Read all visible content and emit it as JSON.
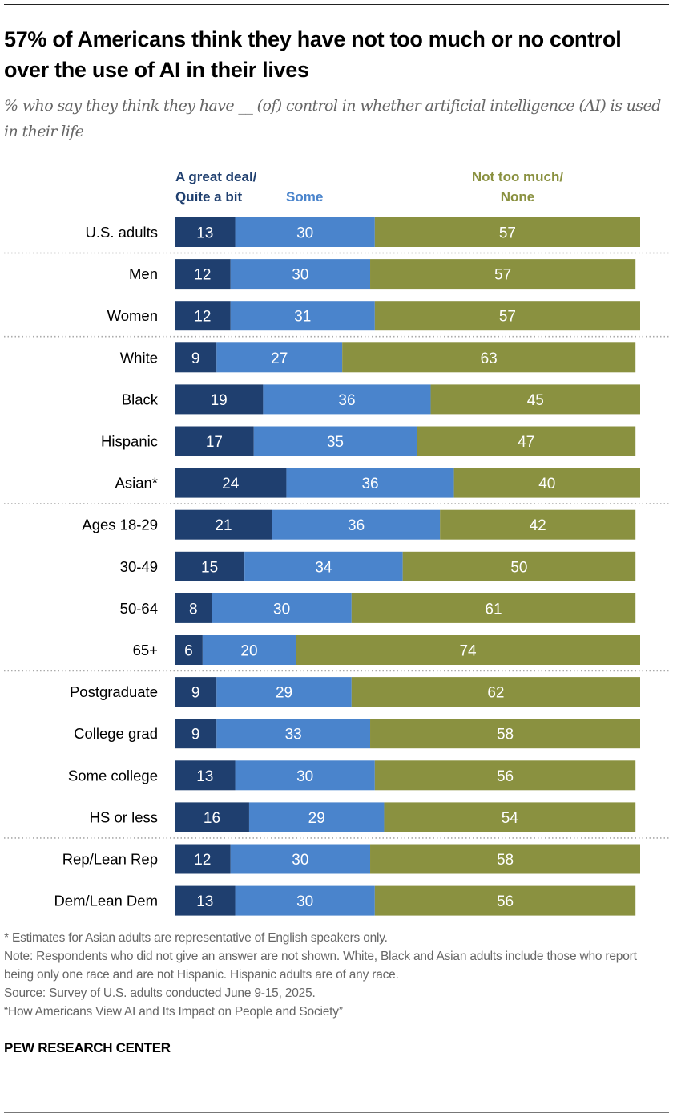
{
  "header": {
    "title": "57% of Americans think they have not too much or no control over the use of AI in their lives",
    "subtitle": "% who say they think they have __ (of) control in whether artificial intelligence (AI) is used in their life"
  },
  "colors": {
    "great_deal": "#1f3f6f",
    "some": "#4a84cc",
    "not_too_much": "#8a9140",
    "divider": "#aaaaaa"
  },
  "chart_data": {
    "type": "bar",
    "orientation": "horizontal",
    "stacked": true,
    "title": "57% of Americans think they have not too much or no control over the use of AI in their lives",
    "subtitle": "% who say they think they have __ (of) control in whether artificial intelligence (AI) is used in their life",
    "xlim": [
      0,
      100
    ],
    "grid": false,
    "legend_position": "top",
    "categories": [
      "U.S. adults",
      "Men",
      "Women",
      "White",
      "Black",
      "Hispanic",
      "Asian*",
      "Ages 18-29",
      "30-49",
      "50-64",
      "65+",
      "Postgraduate",
      "College grad",
      "Some college",
      "HS or less",
      "Rep/Lean Rep",
      "Dem/Lean Dem"
    ],
    "group_breaks_after": [
      "U.S. adults",
      "Women",
      "Asian*",
      "65+",
      "HS or less"
    ],
    "series": [
      {
        "name": "A great deal/ Quite a bit",
        "color": "#1f3f6f",
        "values": [
          13,
          12,
          12,
          9,
          19,
          17,
          24,
          21,
          15,
          8,
          6,
          9,
          9,
          13,
          16,
          12,
          13
        ]
      },
      {
        "name": "Some",
        "color": "#4a84cc",
        "values": [
          30,
          30,
          31,
          27,
          36,
          35,
          36,
          36,
          34,
          30,
          20,
          29,
          33,
          30,
          29,
          30,
          30
        ]
      },
      {
        "name": "Not too much/ None",
        "color": "#8a9140",
        "values": [
          57,
          57,
          57,
          63,
          45,
          47,
          40,
          42,
          50,
          61,
          74,
          62,
          58,
          56,
          54,
          58,
          56
        ]
      }
    ]
  },
  "legend": {
    "great_deal_line1": "A great deal/",
    "great_deal_line2": "Quite a bit",
    "some": "Some",
    "not_too_much_line1": "Not too much/",
    "not_too_much_line2": "None"
  },
  "footer": {
    "asterisk_note": "* Estimates for Asian adults are representative of English speakers only.",
    "note": "Note: Respondents who did not give an answer are not shown. White, Black and Asian adults include those who report being only one race and are not Hispanic. Hispanic adults are of any race.",
    "source": "Source: Survey of U.S. adults conducted June 9-15, 2025.",
    "report": "“How Americans View AI and Its Impact on People and Society”",
    "brand": "PEW RESEARCH CENTER"
  }
}
